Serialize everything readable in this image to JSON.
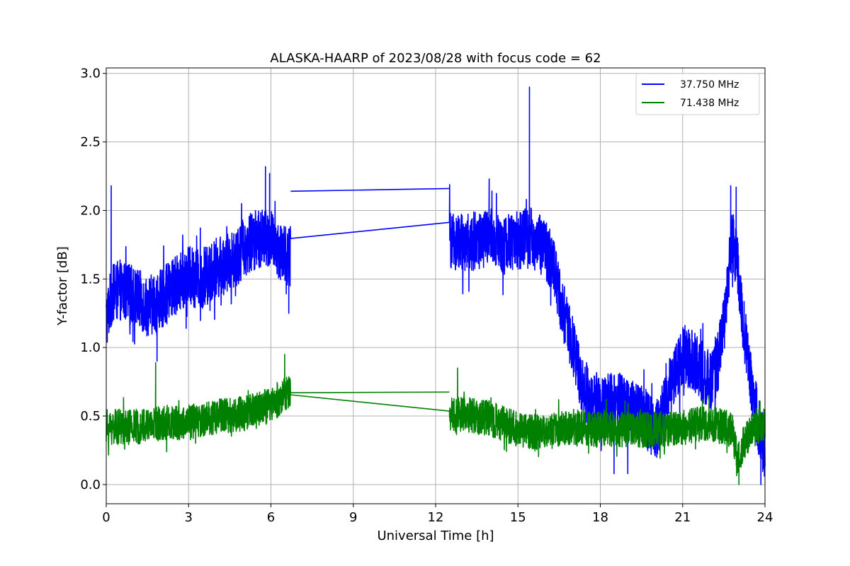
{
  "chart_data": {
    "type": "line",
    "title": "ALASKA-HAARP of 2023/08/28 with focus code = 62",
    "xlabel": "Universal Time [h]",
    "ylabel": "Y-factor [dB]",
    "xlim": [
      0,
      24
    ],
    "ylim": [
      -0.14,
      3.04
    ],
    "xticks": [
      0,
      3,
      6,
      9,
      12,
      15,
      18,
      21,
      24
    ],
    "yticks": [
      0.0,
      0.5,
      1.0,
      1.5,
      2.0,
      2.5,
      3.0
    ],
    "xtick_labels": [
      "0",
      "3",
      "6",
      "9",
      "12",
      "15",
      "18",
      "21",
      "24"
    ],
    "ytick_labels": [
      "0.0",
      "0.5",
      "1.0",
      "1.5",
      "2.0",
      "2.5",
      "3.0"
    ],
    "grid": true,
    "legend_position": "top-right",
    "series": [
      {
        "name": "37.750 MHz",
        "color": "#0000ff",
        "x": [
          0,
          0.2,
          0.5,
          1,
          1.5,
          2,
          2.5,
          3,
          3.5,
          4,
          4.5,
          5,
          5.5,
          6,
          6.4,
          6.7,
          6.72,
          12.5,
          12.52,
          13,
          13.5,
          14,
          14.5,
          15,
          15.5,
          16,
          16.3,
          16.6,
          17,
          17.3,
          17.6,
          18,
          18.5,
          19,
          19.5,
          19.8,
          20,
          20.3,
          20.6,
          21,
          21.3,
          21.6,
          22,
          22.3,
          22.6,
          22.8,
          23,
          23.2,
          23.5,
          23.8,
          24
        ],
        "y": [
          1.2,
          1.38,
          1.42,
          1.38,
          1.3,
          1.35,
          1.45,
          1.52,
          1.5,
          1.58,
          1.62,
          1.72,
          1.8,
          1.78,
          1.7,
          1.65,
          2.14,
          2.16,
          1.8,
          1.75,
          1.78,
          1.8,
          1.75,
          1.78,
          1.8,
          1.72,
          1.6,
          1.3,
          1.0,
          0.75,
          0.62,
          0.6,
          0.6,
          0.58,
          0.52,
          0.45,
          0.38,
          0.55,
          0.75,
          0.95,
          0.92,
          0.85,
          0.75,
          0.9,
          1.4,
          1.8,
          1.6,
          1.2,
          0.75,
          0.38,
          0.25
        ],
        "noise_amplitude": 0.22,
        "spikes": [
          {
            "x": 0.18,
            "y": 2.18
          },
          {
            "x": 1.85,
            "y": 0.9
          },
          {
            "x": 5.8,
            "y": 2.32
          },
          {
            "x": 5.95,
            "y": 2.27
          },
          {
            "x": 6.65,
            "y": 1.25
          },
          {
            "x": 13.95,
            "y": 2.23
          },
          {
            "x": 15.42,
            "y": 2.9
          },
          {
            "x": 15.3,
            "y": 2.0
          },
          {
            "x": 17.5,
            "y": 0.89
          },
          {
            "x": 18.5,
            "y": 0.08
          },
          {
            "x": 19.0,
            "y": 0.08
          },
          {
            "x": 22.75,
            "y": 2.18
          },
          {
            "x": 22.95,
            "y": 2.17
          },
          {
            "x": 23.85,
            "y": 0.0
          }
        ]
      },
      {
        "name": "71.438 MHz",
        "color": "#008000",
        "x": [
          0,
          1,
          2,
          3,
          4,
          5,
          6,
          6.5,
          6.7,
          6.72,
          12.5,
          12.52,
          13,
          14,
          15,
          16,
          17,
          18,
          19,
          20,
          21,
          22,
          22.8,
          23.0,
          23.3,
          23.7,
          24
        ],
        "y": [
          0.42,
          0.42,
          0.45,
          0.45,
          0.5,
          0.52,
          0.58,
          0.66,
          0.68,
          0.67,
          0.675,
          0.5,
          0.52,
          0.48,
          0.4,
          0.38,
          0.42,
          0.4,
          0.4,
          0.4,
          0.42,
          0.45,
          0.4,
          0.18,
          0.34,
          0.42,
          0.46
        ],
        "noise_amplitude": 0.13,
        "spikes": [
          {
            "x": 1.8,
            "y": 0.89
          },
          {
            "x": 6.5,
            "y": 0.95
          },
          {
            "x": 12.8,
            "y": 0.85
          },
          {
            "x": 23.05,
            "y": 0.0
          }
        ]
      }
    ]
  }
}
